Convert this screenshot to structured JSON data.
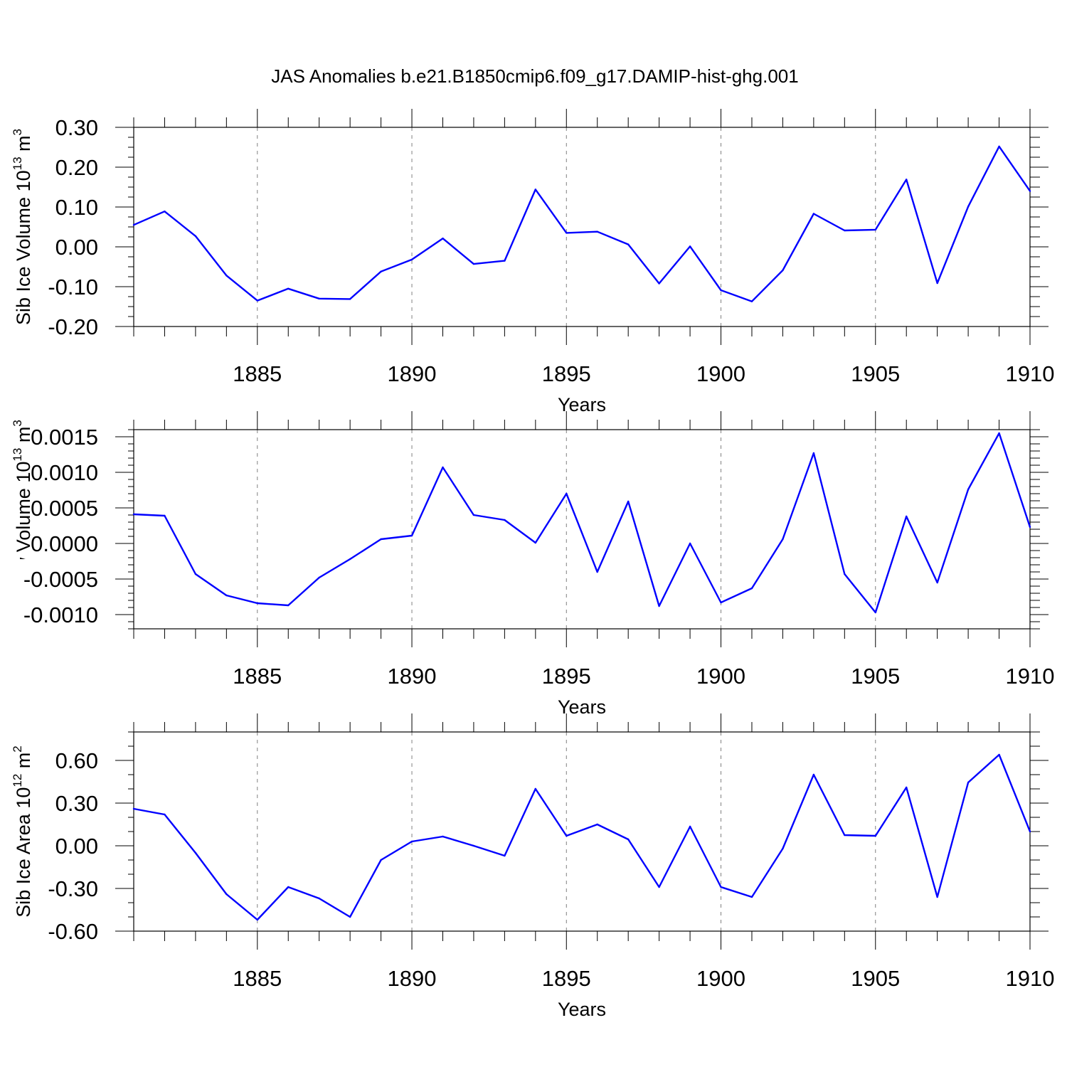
{
  "figure": {
    "title": "JAS Anomalies b.e21.B1850cmip6.f09_g17.DAMIP-hist-ghg.001"
  },
  "style": {
    "line_color": "#0000ff",
    "axis_color": "#000000",
    "grid_color": "#808080"
  },
  "chart_data": [
    {
      "type": "line",
      "ylabel": "Sib Ice Volume",
      "ylabel_power_base": "10",
      "ylabel_exponent": "13",
      "ylabel_unit": "m",
      "ylabel_unit_exponent": "3",
      "xlabel": "Years",
      "xlim": [
        1881,
        1910
      ],
      "ylim": [
        -0.2,
        0.3
      ],
      "xticks": [
        {
          "value": 1885,
          "label": "1885"
        },
        {
          "value": 1890,
          "label": "1890"
        },
        {
          "value": 1895,
          "label": "1895"
        },
        {
          "value": 1900,
          "label": "1900"
        },
        {
          "value": 1905,
          "label": "1905"
        },
        {
          "value": 1910,
          "label": "1910"
        }
      ],
      "yticks": [
        {
          "value": 0.3,
          "label": "0.30"
        },
        {
          "value": 0.2,
          "label": "0.20"
        },
        {
          "value": 0.1,
          "label": "0.10"
        },
        {
          "value": 0.0,
          "label": "0.00"
        },
        {
          "value": -0.1,
          "label": "-0.10"
        },
        {
          "value": -0.2,
          "label": "-0.20"
        }
      ],
      "yminor_step": 0.025,
      "x": [
        1881,
        1882,
        1883,
        1884,
        1885,
        1886,
        1887,
        1888,
        1889,
        1890,
        1891,
        1892,
        1893,
        1894,
        1895,
        1896,
        1897,
        1898,
        1899,
        1900,
        1901,
        1902,
        1903,
        1904,
        1905,
        1906,
        1907,
        1908,
        1909,
        1910
      ],
      "values": [
        0.055,
        0.089,
        0.027,
        -0.072,
        -0.135,
        -0.105,
        -0.13,
        -0.131,
        -0.062,
        -0.032,
        0.021,
        -0.043,
        -0.035,
        0.144,
        0.035,
        0.038,
        0.006,
        -0.092,
        0.001,
        -0.109,
        -0.137,
        -0.059,
        0.083,
        0.041,
        0.043,
        0.169,
        -0.091,
        0.101,
        0.252,
        0.14
      ]
    },
    {
      "type": "line",
      "ylabel": "Sib Snow Volume",
      "ylabel_power_base": "10",
      "ylabel_exponent": "13",
      "ylabel_unit": "m",
      "ylabel_unit_exponent": "3",
      "xlabel": "Years",
      "xlim": [
        1881,
        1910
      ],
      "ylim": [
        -0.0012,
        0.0016
      ],
      "xticks": [
        {
          "value": 1885,
          "label": "1885"
        },
        {
          "value": 1890,
          "label": "1890"
        },
        {
          "value": 1895,
          "label": "1895"
        },
        {
          "value": 1900,
          "label": "1900"
        },
        {
          "value": 1905,
          "label": "1905"
        },
        {
          "value": 1910,
          "label": "1910"
        }
      ],
      "yticks": [
        {
          "value": 0.0015,
          "label": "0.0015"
        },
        {
          "value": 0.001,
          "label": "0.0010"
        },
        {
          "value": 0.0005,
          "label": "0.0005"
        },
        {
          "value": 0.0,
          "label": "0.0000"
        },
        {
          "value": -0.0005,
          "label": "-0.0005"
        },
        {
          "value": -0.001,
          "label": "-0.0010"
        }
      ],
      "yminor_step": 0.0001,
      "x": [
        1881,
        1882,
        1883,
        1884,
        1885,
        1886,
        1887,
        1888,
        1889,
        1890,
        1891,
        1892,
        1893,
        1894,
        1895,
        1896,
        1897,
        1898,
        1899,
        1900,
        1901,
        1902,
        1903,
        1904,
        1905,
        1906,
        1907,
        1908,
        1909,
        1910
      ],
      "values": [
        0.00041,
        0.00039,
        -0.00043,
        -0.00073,
        -0.00084,
        -0.00087,
        -0.00048,
        -0.00022,
        6e-05,
        0.00011,
        0.00107,
        0.0004,
        0.00033,
        1e-05,
        0.0007,
        -0.0004,
        0.00059,
        -0.00088,
        0.0,
        -0.00083,
        -0.00063,
        6e-05,
        0.00127,
        -0.00043,
        -0.00097,
        0.00038,
        -0.00055,
        0.00076,
        0.00155,
        0.00023
      ]
    },
    {
      "type": "line",
      "ylabel": "Sib Ice Area",
      "ylabel_power_base": "10",
      "ylabel_exponent": "12",
      "ylabel_unit": "m",
      "ylabel_unit_exponent": "2",
      "xlabel": "Years",
      "xlim": [
        1881,
        1910
      ],
      "ylim": [
        -0.6,
        0.8
      ],
      "xticks": [
        {
          "value": 1885,
          "label": "1885"
        },
        {
          "value": 1890,
          "label": "1890"
        },
        {
          "value": 1895,
          "label": "1895"
        },
        {
          "value": 1900,
          "label": "1900"
        },
        {
          "value": 1905,
          "label": "1905"
        },
        {
          "value": 1910,
          "label": "1910"
        }
      ],
      "yticks": [
        {
          "value": 0.6,
          "label": "0.60"
        },
        {
          "value": 0.3,
          "label": "0.30"
        },
        {
          "value": 0.0,
          "label": "0.00"
        },
        {
          "value": -0.3,
          "label": "-0.30"
        },
        {
          "value": -0.6,
          "label": "-0.60"
        }
      ],
      "yminor_step": 0.1,
      "x": [
        1881,
        1882,
        1883,
        1884,
        1885,
        1886,
        1887,
        1888,
        1889,
        1890,
        1891,
        1892,
        1893,
        1894,
        1895,
        1896,
        1897,
        1898,
        1899,
        1900,
        1901,
        1902,
        1903,
        1904,
        1905,
        1906,
        1907,
        1908,
        1909,
        1910
      ],
      "values": [
        0.26,
        0.22,
        -0.05,
        -0.34,
        -0.52,
        -0.29,
        -0.37,
        -0.5,
        -0.1,
        0.03,
        0.065,
        0.0,
        -0.07,
        0.4,
        0.07,
        0.15,
        0.045,
        -0.29,
        0.135,
        -0.29,
        -0.36,
        -0.02,
        0.5,
        0.075,
        0.07,
        0.41,
        -0.36,
        0.445,
        0.64,
        0.1
      ]
    }
  ]
}
